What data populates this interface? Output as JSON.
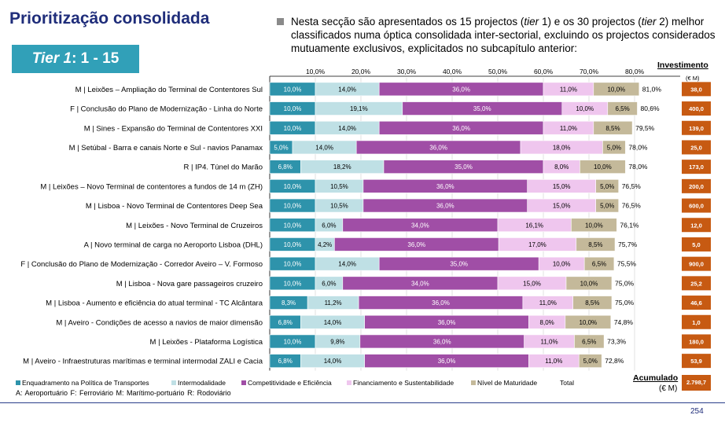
{
  "title": "Prioritização consolidada",
  "tier": {
    "label": "Tier 1",
    "range": ": 1 - 15"
  },
  "intro": {
    "part1": "Nesta secção são apresentados os 15 projectos (",
    "tier1": "tier",
    "part2": " 1) e os 30 projectos (",
    "tier2": "tier",
    "part3": " 2) melhor classificados numa óptica consolidada inter-sectorial, excluindo os projectos considerados mutuamente exclusivos, explicitados no subcapítulo anterior:"
  },
  "investment": {
    "title": "Investimento",
    "unit": "(€ M)"
  },
  "accumulated": {
    "title": "Acumulado",
    "unit": "(€ M)",
    "value": "2.798,7"
  },
  "abbreviations": "A: Aeroportuário      F: Ferroviário      M: Marítimo-portuário      R: Rodoviário",
  "page_number": "254",
  "colors": {
    "s1": "#2e93ab",
    "s2": "#bfe0e5",
    "s3": "#a04ea6",
    "s4": "#efc6ee",
    "s5": "#c4b99a",
    "invest_box": "#c75a12",
    "title": "#1f2d7a"
  },
  "chart_data": {
    "type": "bar",
    "orientation": "horizontal",
    "stacked": true,
    "xlim": [
      0,
      90
    ],
    "x_ticks": [
      "10,0%",
      "20,0%",
      "30,0%",
      "40,0%",
      "50,0%",
      "60,0%",
      "70,0%",
      "80,0%"
    ],
    "grid": true,
    "legend_position": "bottom",
    "categories": [
      "M | Leixões – Ampliação do Terminal de Contentores Sul",
      "F | Conclusão do Plano de Modernização - Linha do Norte",
      "M | Sines - Expansão do Terminal de Contentores XXI",
      "M | Setúbal - Barra e canais Norte e Sul - navios Panamax",
      "R | IP4. Túnel do Marão",
      "M | Leixões – Novo Terminal de contentores a fundos de 14 m (ZH)",
      "M | Lisboa - Novo Terminal de Contentores Deep Sea",
      "M | Leixões - Novo Terminal de Cruzeiros",
      "A | Novo terminal de carga no Aeroporto Lisboa (DHL)",
      "F | Conclusão do Plano de Modernização - Corredor Aveiro – V. Formoso",
      "M | Lisboa - Nova gare passageiros cruzeiro",
      "M | Lisboa - Aumento e eficiência do atual terminal - TC Alcântara",
      "M | Aveiro - Condições de acesso a navios de maior dimensão",
      "M | Leixões - Plataforma Logística",
      "M | Aveiro - Infraestruturas marítimas e terminal intermodal ZALI e Cacia"
    ],
    "series": [
      {
        "name": "Enquadramento na Política de Transportes",
        "color": "#2e93ab",
        "values": [
          10.0,
          10.0,
          10.0,
          5.0,
          6.8,
          10.0,
          10.0,
          10.0,
          10.0,
          10.0,
          10.0,
          8.3,
          6.8,
          10.0,
          6.8
        ],
        "labels": [
          "10,0%",
          "10,0%",
          "10,0%",
          "5,0%",
          "6,8%",
          "10,0%",
          "10,0%",
          "10,0%",
          "10,0%",
          "10,0%",
          "10,0%",
          "8,3%",
          "6,8%",
          "10,0%",
          "6,8%"
        ]
      },
      {
        "name": "Intermodalidade",
        "color": "#bfe0e5",
        "values": [
          14.0,
          19.1,
          14.0,
          14.0,
          18.2,
          10.5,
          10.5,
          6.0,
          4.2,
          14.0,
          6.0,
          11.2,
          14.0,
          9.8,
          14.0
        ],
        "labels": [
          "14,0%",
          "19,1%",
          "14,0%",
          "14,0%",
          "18,2%",
          "10,5%",
          "10,5%",
          "6,0%",
          "4,2%",
          "14,0%",
          "6,0%",
          "11,2%",
          "14,0%",
          "9,8%",
          "14,0%"
        ]
      },
      {
        "name": "Competitividade e Eficiência",
        "color": "#a04ea6",
        "values": [
          36.0,
          35.0,
          36.0,
          36.0,
          35.0,
          36.0,
          36.0,
          34.0,
          36.0,
          35.0,
          34.0,
          36.0,
          36.0,
          36.0,
          36.0
        ],
        "labels": [
          "36,0%",
          "35,0%",
          "36,0%",
          "36,0%",
          "35,0%",
          "36,0%",
          "36,0%",
          "34,0%",
          "36,0%",
          "35,0%",
          "34,0%",
          "36,0%",
          "36,0%",
          "36,0%",
          "36,0%"
        ]
      },
      {
        "name": "Financiamento e Sustentabilidade",
        "color": "#efc6ee",
        "values": [
          11.0,
          10.0,
          11.0,
          18.0,
          8.0,
          15.0,
          15.0,
          16.1,
          17.0,
          10.0,
          15.0,
          11.0,
          8.0,
          11.0,
          11.0
        ],
        "labels": [
          "11,0%",
          "10,0%",
          "11,0%",
          "18,0%",
          "8,0%",
          "15,0%",
          "15,0%",
          "16,1%",
          "17,0%",
          "10,0%",
          "15,0%",
          "11,0%",
          "8,0%",
          "11,0%",
          "11,0%"
        ]
      },
      {
        "name": "Nível de Maturidade",
        "color": "#c4b99a",
        "values": [
          10.0,
          6.5,
          8.5,
          5.0,
          10.0,
          5.0,
          5.0,
          10.0,
          8.5,
          6.5,
          10.0,
          8.5,
          10.0,
          6.5,
          5.0
        ],
        "labels": [
          "10,0%",
          "6,5%",
          "8,5%",
          "5,0%",
          "10,0%",
          "5,0%",
          "5,0%",
          "10,0%",
          "8,5%",
          "6,5%",
          "10,0%",
          "8,5%",
          "10,0%",
          "6,5%",
          "5,0%"
        ]
      }
    ],
    "total_legend": "Total",
    "totals": [
      "81,0%",
      "80,6%",
      "79,5%",
      "78,0%",
      "78,0%",
      "76,5%",
      "76,5%",
      "76,1%",
      "75,7%",
      "75,5%",
      "75,0%",
      "75,0%",
      "74,8%",
      "73,3%",
      "72,8%"
    ],
    "investment_values": [
      "38,0",
      "400,0",
      "139,0",
      "25,0",
      "173,0",
      "200,0",
      "600,0",
      "12,0",
      "5,0",
      "900,0",
      "25,2",
      "46,6",
      "1,0",
      "180,0",
      "53,9"
    ]
  }
}
